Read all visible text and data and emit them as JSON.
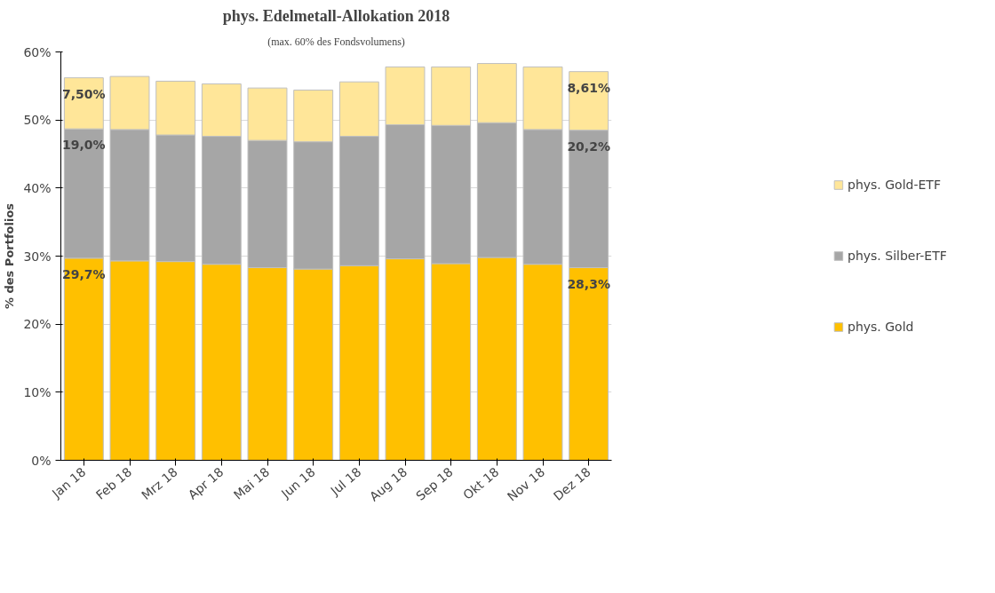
{
  "chart_data": {
    "type": "bar",
    "stacked": true,
    "title": "phys. Edelmetall-Allokation 2018",
    "subtitle": "(max. 60% des Fondsvolumens)",
    "ylabel": "% des Portfolios",
    "categories": [
      "Jan 18",
      "Feb 18",
      "Mrz 18",
      "Apr 18",
      "Mai 18",
      "Jun 18",
      "Jul 18",
      "Aug 18",
      "Sep 18",
      "Okt 18",
      "Nov 18",
      "Dez 18"
    ],
    "series": [
      {
        "name": "phys. Gold",
        "color": "#ffc000",
        "values": [
          29.7,
          29.3,
          29.2,
          28.8,
          28.3,
          28.1,
          28.6,
          29.6,
          28.9,
          29.8,
          28.8,
          28.3
        ],
        "value_labels": [
          "29,7%",
          null,
          null,
          null,
          null,
          null,
          null,
          null,
          null,
          null,
          null,
          "28,3%"
        ]
      },
      {
        "name": "phys. Silber-ETF",
        "color": "#a6a6a6",
        "values": [
          19.0,
          19.3,
          18.6,
          18.8,
          18.7,
          18.7,
          19.0,
          19.7,
          20.3,
          19.8,
          19.8,
          20.2
        ],
        "value_labels": [
          "19,0%",
          null,
          null,
          null,
          null,
          null,
          null,
          null,
          null,
          null,
          null,
          "20,2%"
        ]
      },
      {
        "name": "phys. Gold-ETF",
        "color": "#ffe699",
        "values": [
          7.5,
          7.8,
          7.9,
          7.7,
          7.7,
          7.6,
          8.0,
          8.5,
          8.6,
          8.7,
          9.2,
          8.61
        ],
        "value_labels": [
          "7,50%",
          null,
          null,
          null,
          null,
          null,
          null,
          null,
          null,
          null,
          null,
          "8,61%"
        ]
      }
    ],
    "ylim": [
      0,
      60
    ],
    "yticks": [
      {
        "value": 0,
        "label": "0%"
      },
      {
        "value": 10,
        "label": "10%"
      },
      {
        "value": 20,
        "label": "20%"
      },
      {
        "value": 30,
        "label": "30%"
      },
      {
        "value": 40,
        "label": "40%"
      },
      {
        "value": 50,
        "label": "50%"
      },
      {
        "value": 60,
        "label": "60%"
      }
    ],
    "grid": "y",
    "legend": "right"
  }
}
